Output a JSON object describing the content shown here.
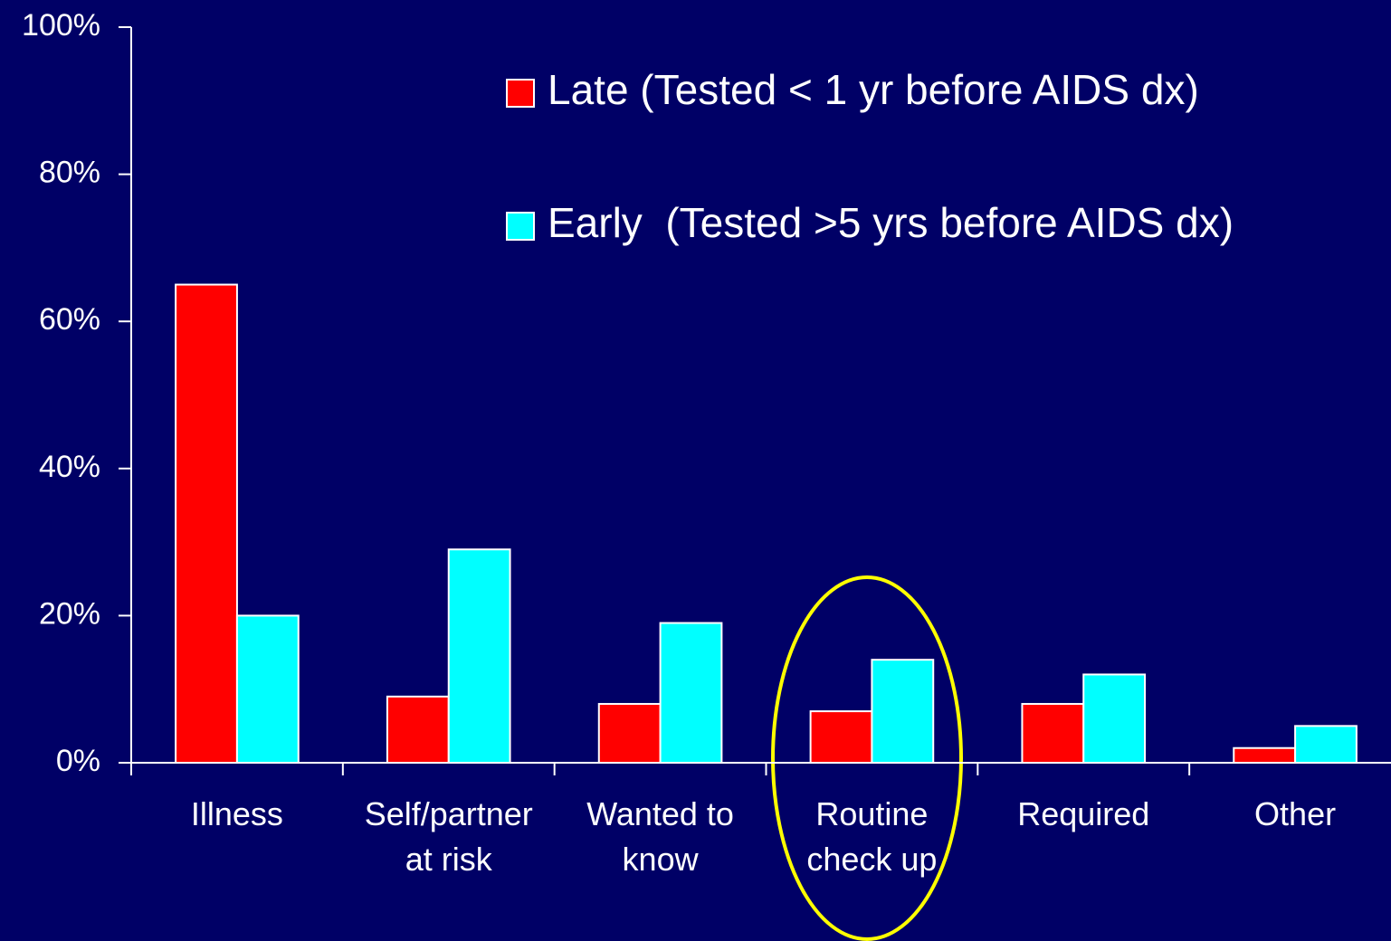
{
  "chart_data": {
    "type": "bar",
    "categories": [
      "Illness",
      "Self/partner\nat risk",
      "Wanted to\nknow",
      "Routine\ncheck up",
      "Required",
      "Other"
    ],
    "series": [
      {
        "name": "Late (Tested < 1 yr before AIDS dx)",
        "color": "#ff0000",
        "values": [
          65,
          9,
          8,
          7,
          8,
          2
        ]
      },
      {
        "name": "Early  (Tested >5 yrs before AIDS dx)",
        "color": "#00ffff",
        "values": [
          20,
          29,
          19,
          14,
          12,
          5
        ]
      }
    ],
    "ylim": [
      0,
      100
    ],
    "yticks": [
      {
        "value": 0,
        "label": "0%"
      },
      {
        "value": 20,
        "label": "20%"
      },
      {
        "value": 40,
        "label": "40%"
      },
      {
        "value": 60,
        "label": "60%"
      },
      {
        "value": 80,
        "label": "80%"
      },
      {
        "value": 100,
        "label": "100%"
      }
    ],
    "legend": "top-right"
  }
}
